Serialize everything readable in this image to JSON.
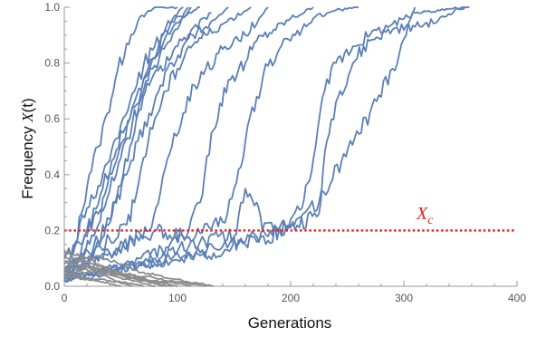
{
  "chart_data": {
    "type": "line",
    "xlabel": "Generations",
    "ylabel_prefix": "Frequency ",
    "ylabel_var": "X",
    "ylabel_arg": "(t)",
    "xlim": [
      0,
      400
    ],
    "ylim": [
      0,
      1
    ],
    "xticks": [
      0,
      100,
      200,
      300,
      400
    ],
    "xtick_labels": [
      "0",
      "100",
      "200",
      "300",
      "400"
    ],
    "yticks": [
      0,
      0.2,
      0.4,
      0.6,
      0.8,
      1.0
    ],
    "ytick_labels": [
      "0.0",
      "0.2",
      "0.4",
      "0.6",
      "0.8",
      "1.0"
    ],
    "grid": false,
    "threshold": {
      "y": 0.2,
      "label_main": "X",
      "label_sub": "c",
      "color": "#e8231c"
    },
    "colors": {
      "fixed": "#5b80b8",
      "lost": "#8c8c8c"
    },
    "series": [
      {
        "group": "fixed",
        "x": [
          0,
          8,
          15,
          22,
          30,
          38,
          45,
          55,
          65,
          80,
          100
        ],
        "y": [
          0.02,
          0.12,
          0.26,
          0.4,
          0.5,
          0.62,
          0.74,
          0.87,
          0.95,
          1.0,
          1.0
        ]
      },
      {
        "group": "fixed",
        "x": [
          0,
          10,
          20,
          30,
          40,
          50,
          60,
          70,
          80,
          95,
          120
        ],
        "y": [
          0.05,
          0.15,
          0.28,
          0.36,
          0.45,
          0.58,
          0.69,
          0.79,
          0.86,
          0.95,
          1.0
        ]
      },
      {
        "group": "fixed",
        "x": [
          0,
          12,
          22,
          32,
          42,
          52,
          62,
          72,
          82,
          95,
          112
        ],
        "y": [
          0.03,
          0.1,
          0.22,
          0.33,
          0.45,
          0.55,
          0.66,
          0.76,
          0.84,
          0.92,
          1.0
        ]
      },
      {
        "group": "fixed",
        "x": [
          0,
          15,
          28,
          38,
          48,
          58,
          68,
          78,
          88,
          98,
          110
        ],
        "y": [
          0.05,
          0.12,
          0.2,
          0.36,
          0.48,
          0.6,
          0.7,
          0.78,
          0.85,
          0.92,
          1.0
        ]
      },
      {
        "group": "fixed",
        "x": [
          0,
          10,
          20,
          30,
          40,
          50,
          60,
          70,
          80,
          90,
          105
        ],
        "y": [
          0.1,
          0.15,
          0.2,
          0.26,
          0.34,
          0.46,
          0.58,
          0.7,
          0.82,
          0.93,
          1.0
        ]
      },
      {
        "group": "fixed",
        "x": [
          0,
          15,
          30,
          40,
          50,
          58,
          66,
          75,
          85,
          100,
          130
        ],
        "y": [
          0.04,
          0.1,
          0.16,
          0.24,
          0.36,
          0.5,
          0.63,
          0.72,
          0.79,
          0.86,
          0.98
        ]
      },
      {
        "group": "fixed",
        "x": [
          0,
          20,
          35,
          45,
          55,
          65,
          75,
          85,
          95,
          108,
          125,
          145
        ],
        "y": [
          0.03,
          0.08,
          0.18,
          0.3,
          0.4,
          0.52,
          0.62,
          0.72,
          0.8,
          0.88,
          0.93,
          1.0
        ]
      },
      {
        "group": "fixed",
        "x": [
          0,
          20,
          40,
          55,
          62,
          70,
          80,
          90,
          100,
          110,
          125,
          140,
          165
        ],
        "y": [
          0.04,
          0.1,
          0.17,
          0.22,
          0.3,
          0.46,
          0.6,
          0.7,
          0.78,
          0.86,
          0.9,
          0.94,
          1.0
        ]
      },
      {
        "group": "fixed",
        "x": [
          0,
          20,
          40,
          60,
          75,
          85,
          95,
          105,
          115,
          125,
          140,
          160,
          180
        ],
        "y": [
          0.04,
          0.08,
          0.12,
          0.16,
          0.2,
          0.34,
          0.5,
          0.62,
          0.72,
          0.78,
          0.85,
          0.9,
          1.0
        ]
      },
      {
        "group": "fixed",
        "x": [
          0,
          20,
          40,
          60,
          80,
          95,
          110,
          120,
          130,
          145,
          160,
          170,
          185,
          200,
          220
        ],
        "y": [
          0.03,
          0.07,
          0.12,
          0.17,
          0.2,
          0.17,
          0.2,
          0.3,
          0.55,
          0.74,
          0.8,
          0.88,
          0.92,
          0.96,
          1.0
        ]
      },
      {
        "group": "fixed",
        "x": [
          0,
          30,
          60,
          90,
          120,
          140,
          150,
          160,
          170,
          180,
          190,
          200,
          210,
          220,
          240,
          260
        ],
        "y": [
          0.02,
          0.05,
          0.09,
          0.14,
          0.19,
          0.23,
          0.35,
          0.52,
          0.68,
          0.79,
          0.85,
          0.88,
          0.92,
          0.96,
          0.99,
          1.0
        ]
      },
      {
        "group": "fixed",
        "x": [
          0,
          40,
          80,
          120,
          150,
          160,
          170,
          175,
          185,
          195,
          205,
          225,
          245,
          270,
          290,
          310
        ],
        "y": [
          0.03,
          0.06,
          0.1,
          0.16,
          0.18,
          0.35,
          0.3,
          0.2,
          0.2,
          0.22,
          0.24,
          0.3,
          0.45,
          0.62,
          0.78,
          1.0
        ]
      },
      {
        "group": "fixed",
        "x": [
          0,
          40,
          80,
          120,
          160,
          190,
          200,
          210,
          215,
          222,
          230,
          240,
          255,
          270,
          290,
          310,
          330,
          355
        ],
        "y": [
          0.03,
          0.05,
          0.08,
          0.12,
          0.16,
          0.2,
          0.24,
          0.28,
          0.37,
          0.5,
          0.7,
          0.8,
          0.86,
          0.9,
          0.94,
          0.98,
          0.99,
          1.0
        ]
      },
      {
        "group": "fixed",
        "x": [
          0,
          40,
          80,
          120,
          160,
          200,
          225,
          232,
          240,
          255,
          270,
          290,
          310,
          330,
          345,
          358
        ],
        "y": [
          0.02,
          0.05,
          0.08,
          0.11,
          0.15,
          0.21,
          0.26,
          0.52,
          0.66,
          0.8,
          0.88,
          0.92,
          0.93,
          0.95,
          0.99,
          1.0
        ]
      },
      {
        "group": "lost",
        "x": [
          0,
          10,
          20,
          30,
          40,
          50,
          60,
          70,
          80,
          90
        ],
        "y": [
          0.13,
          0.11,
          0.1,
          0.08,
          0.06,
          0.05,
          0.04,
          0.03,
          0.01,
          0.0
        ]
      },
      {
        "group": "lost",
        "x": [
          0,
          10,
          20,
          30,
          40,
          50,
          60,
          70,
          80,
          90,
          100,
          110,
          120,
          132
        ],
        "y": [
          0.08,
          0.09,
          0.1,
          0.11,
          0.09,
          0.08,
          0.06,
          0.05,
          0.04,
          0.03,
          0.025,
          0.015,
          0.01,
          0.0
        ]
      },
      {
        "group": "lost",
        "x": [
          0,
          10,
          20,
          30,
          40,
          50,
          60,
          70,
          80
        ],
        "y": [
          0.06,
          0.05,
          0.07,
          0.06,
          0.04,
          0.03,
          0.02,
          0.01,
          0.0
        ]
      },
      {
        "group": "lost",
        "x": [
          0,
          10,
          20,
          30,
          40,
          50,
          60,
          70,
          80,
          90,
          100,
          112
        ],
        "y": [
          0.05,
          0.04,
          0.05,
          0.06,
          0.05,
          0.04,
          0.03,
          0.025,
          0.02,
          0.015,
          0.01,
          0.0
        ]
      },
      {
        "group": "lost",
        "x": [
          0,
          10,
          20,
          30,
          40,
          50,
          60
        ],
        "y": [
          0.1,
          0.08,
          0.07,
          0.05,
          0.03,
          0.01,
          0.0
        ]
      },
      {
        "group": "lost",
        "x": [
          0,
          10,
          20,
          30,
          40,
          50,
          60,
          70
        ],
        "y": [
          0.03,
          0.04,
          0.03,
          0.025,
          0.02,
          0.015,
          0.01,
          0.0
        ]
      },
      {
        "group": "lost",
        "x": [
          0,
          10,
          20,
          30,
          40,
          50,
          60,
          70,
          80,
          95
        ],
        "y": [
          0.12,
          0.1,
          0.09,
          0.07,
          0.06,
          0.04,
          0.03,
          0.02,
          0.01,
          0.0
        ]
      },
      {
        "group": "lost",
        "x": [
          0,
          10,
          20,
          30,
          40,
          50,
          60,
          70,
          80,
          90,
          100,
          110,
          125
        ],
        "y": [
          0.07,
          0.06,
          0.07,
          0.06,
          0.05,
          0.045,
          0.04,
          0.035,
          0.03,
          0.02,
          0.015,
          0.01,
          0.0
        ]
      },
      {
        "group": "lost",
        "x": [
          0,
          10,
          20,
          30,
          40,
          50
        ],
        "y": [
          0.04,
          0.03,
          0.025,
          0.02,
          0.01,
          0.0
        ]
      },
      {
        "group": "lost",
        "x": [
          0,
          10,
          20,
          30,
          40,
          50,
          60,
          70,
          80,
          90,
          100
        ],
        "y": [
          0.09,
          0.08,
          0.06,
          0.05,
          0.05,
          0.04,
          0.03,
          0.02,
          0.015,
          0.01,
          0.0
        ]
      }
    ]
  }
}
